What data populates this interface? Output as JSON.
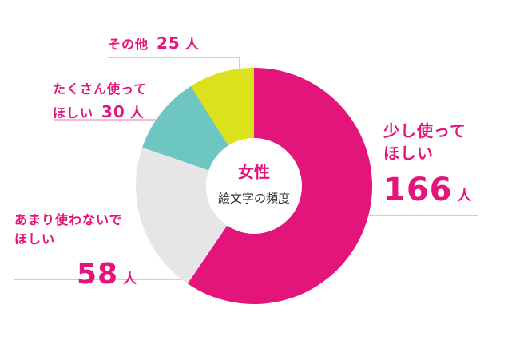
{
  "chart_data": {
    "type": "donut",
    "center_title": "女性",
    "center_subtitle": "絵文字の頻度",
    "categories": [
      "少し使って\nほしい",
      "あまり使わないで\nほしい",
      "たくさん使って\nほしい",
      "その他"
    ],
    "values": [
      166,
      58,
      30,
      25
    ],
    "unit": "人",
    "colors": [
      "#e4157a",
      "#e6e6e6",
      "#6dc6c1",
      "#d9e21b"
    ],
    "label_color": "#e4157a"
  }
}
